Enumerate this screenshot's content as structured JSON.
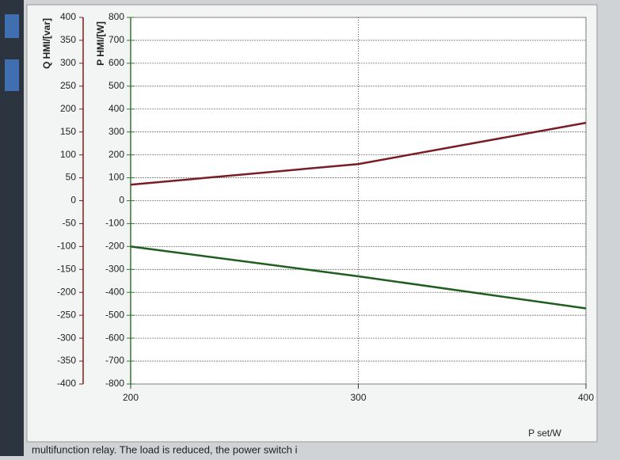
{
  "chart_data": {
    "type": "line",
    "y_label": "Q HMI/[var]",
    "y2_label": "P HMI/[W]",
    "x_label": "P set/W",
    "caption": "multifunction relay. The load is reduced, the power switch i",
    "x": [
      200,
      300,
      400
    ],
    "xlim": [
      200,
      400
    ],
    "xticks": [
      200,
      300,
      400
    ],
    "ylim": [
      -400,
      400
    ],
    "yticks": [
      -400,
      -350,
      -300,
      -250,
      -200,
      -150,
      -100,
      -50,
      0,
      50,
      100,
      150,
      200,
      250,
      300,
      350,
      400
    ],
    "y2lim": [
      -800,
      800
    ],
    "y2ticks": [
      -800,
      -700,
      -600,
      -500,
      -400,
      -300,
      -200,
      -100,
      0,
      100,
      200,
      300,
      400,
      500,
      600,
      700,
      800
    ],
    "y_axis_color": "#7a1c1c",
    "y2_axis_color": "#2f7a2f",
    "grid": true,
    "series": [
      {
        "color": "#7a1c24",
        "values": [
          35,
          80,
          170
        ]
      },
      {
        "color": "#1f5e1f",
        "values": [
          -200,
          -330,
          -470
        ],
        "axis": "y2"
      }
    ]
  }
}
